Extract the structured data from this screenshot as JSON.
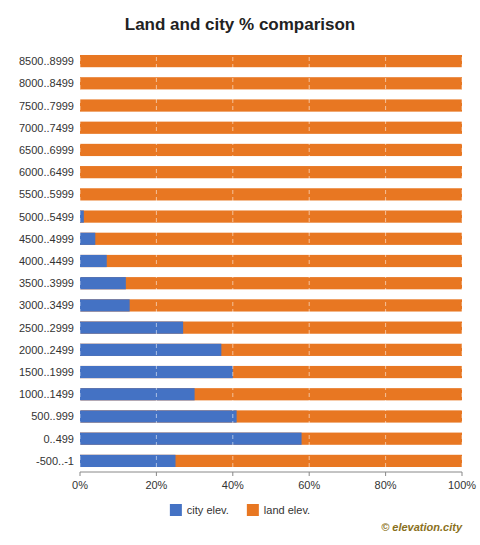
{
  "chart_data": {
    "type": "bar",
    "orientation": "horizontal",
    "title": "Land and city % comparison",
    "categories": [
      "8500..8999",
      "8000..8499",
      "7500..7999",
      "7000..7499",
      "6500..6999",
      "6000..6499",
      "5500..5999",
      "5000..5499",
      "4500..4999",
      "4000..4499",
      "3500..3999",
      "3000..3499",
      "2500..2999",
      "2000..2499",
      "1500..1999",
      "1000..1499",
      "500..999",
      "0..499",
      "-500..-1"
    ],
    "series": [
      {
        "name": "city elev.",
        "color": "#4472C4",
        "values": [
          0.0,
          0.0,
          0.0,
          0.0,
          0.0,
          0.0,
          0.0,
          1.0,
          4.0,
          7.0,
          12.0,
          13.0,
          27.0,
          37.0,
          40.0,
          30.0,
          41.0,
          58.0,
          25.0
        ]
      },
      {
        "name": "land elev.",
        "color": "#E87722",
        "values": [
          100.0,
          100.0,
          100.0,
          100.0,
          100.0,
          100.0,
          100.0,
          100.0,
          100.0,
          100.0,
          100.0,
          100.0,
          100.0,
          100.0,
          100.0,
          100.0,
          100.0,
          100.0,
          100.0
        ]
      }
    ],
    "xlim": [
      0,
      100
    ],
    "xticks": [
      {
        "value": 0,
        "label": "0%"
      },
      {
        "value": 20,
        "label": "20%"
      },
      {
        "value": 40,
        "label": "40%"
      },
      {
        "value": 60,
        "label": "60%"
      },
      {
        "value": 80,
        "label": "80%"
      },
      {
        "value": 100,
        "label": "100%"
      }
    ],
    "grid": true,
    "legend": "bottom",
    "annotations": [
      "© elevation.city"
    ]
  }
}
